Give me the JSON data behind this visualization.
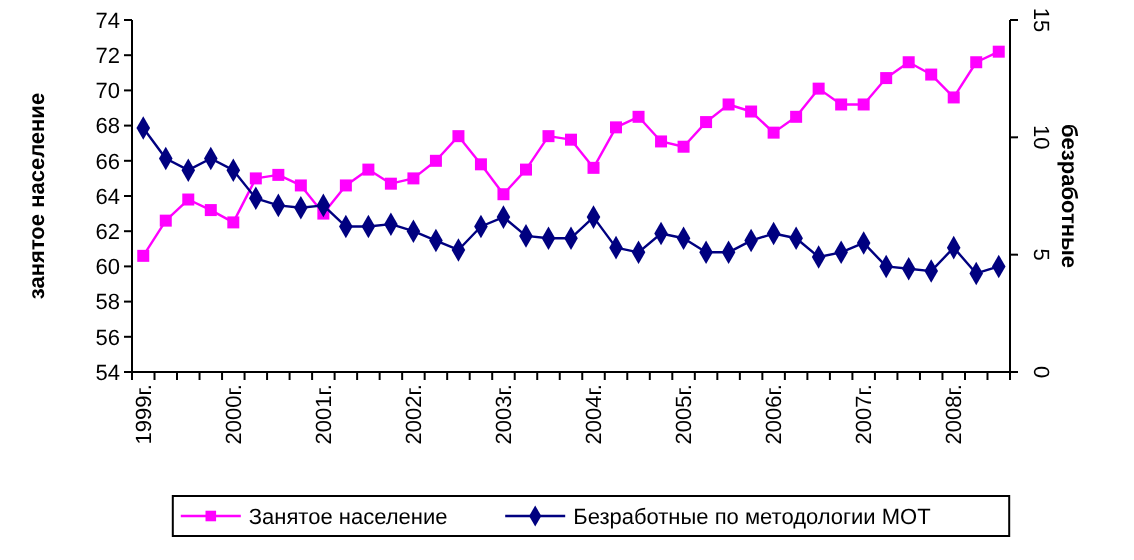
{
  "chart_data": {
    "type": "line",
    "categories": [
      "1999г.",
      null,
      null,
      null,
      "2000г.",
      null,
      null,
      null,
      "2001г.",
      null,
      null,
      null,
      "2002г.",
      null,
      null,
      null,
      "2003г.",
      null,
      null,
      null,
      "2004г.",
      null,
      null,
      null,
      "2005г.",
      null,
      null,
      null,
      "2006г.",
      null,
      null,
      null,
      "2007г.",
      null,
      null,
      null,
      "2008г.",
      null,
      null
    ],
    "ylabel": "занятое население",
    "y2label": "безработные",
    "ylim": [
      54,
      74
    ],
    "yticks": [
      54,
      56,
      58,
      60,
      62,
      64,
      66,
      68,
      70,
      72,
      74
    ],
    "y2lim": [
      0,
      15
    ],
    "y2ticks": [
      0,
      5,
      10,
      15
    ],
    "legend": "bottom",
    "grid": false,
    "line_style": "solid",
    "series": [
      {
        "name": "Занятое население",
        "color": "#ff00ff",
        "marker": "square",
        "values": [
          60.6,
          62.6,
          63.8,
          63.2,
          62.5,
          65.0,
          65.2,
          64.6,
          63.0,
          64.6,
          65.5,
          64.7,
          65.0,
          66.0,
          67.4,
          65.8,
          64.1,
          65.5,
          67.4,
          67.2,
          65.6,
          67.9,
          68.5,
          67.1,
          66.8,
          68.2,
          69.2,
          68.8,
          67.6,
          68.5,
          70.1,
          69.2,
          69.2,
          70.7,
          71.6,
          70.9,
          69.6,
          71.6,
          72.2
        ]
      },
      {
        "name": "Безработные по методологии МОТ",
        "color": "#000080",
        "marker": "diamond",
        "axis": "y2",
        "values": [
          10.4,
          9.1,
          8.6,
          9.1,
          8.6,
          7.4,
          7.1,
          7.0,
          7.1,
          6.2,
          6.2,
          6.3,
          6.0,
          5.6,
          5.2,
          6.2,
          6.6,
          5.8,
          5.7,
          5.7,
          6.6,
          5.3,
          5.1,
          5.9,
          5.7,
          5.1,
          5.1,
          5.6,
          5.9,
          5.7,
          4.9,
          5.1,
          5.5,
          4.5,
          4.4,
          4.3,
          5.3,
          4.2,
          4.5
        ]
      }
    ]
  }
}
